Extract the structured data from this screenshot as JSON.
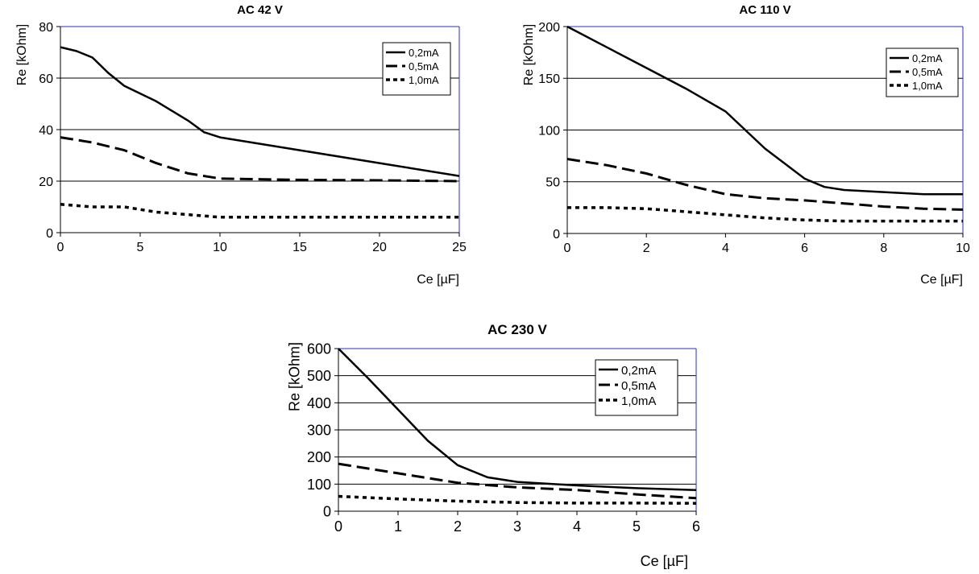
{
  "chart_data": [
    {
      "type": "line",
      "title": "AC 42 V",
      "xlabel": "Ce [µF]",
      "ylabel": "Re [kOhm]",
      "xlim": [
        0,
        25
      ],
      "ylim": [
        0,
        80
      ],
      "xticks": [
        "0",
        "5",
        "10",
        "15",
        "20",
        "25"
      ],
      "yticks": [
        "0",
        "20",
        "40",
        "60",
        "80"
      ],
      "grid": "horizontal",
      "legend": "top-right",
      "series": [
        {
          "name": "0,2mA",
          "style": "solid",
          "points": [
            [
              0,
              72
            ],
            [
              1,
              70.5
            ],
            [
              2,
              68
            ],
            [
              3,
              62
            ],
            [
              4,
              57
            ],
            [
              6,
              51
            ],
            [
              8,
              43.5
            ],
            [
              9,
              39
            ],
            [
              10,
              37
            ],
            [
              15,
              32
            ],
            [
              20,
              27
            ],
            [
              25,
              22
            ]
          ]
        },
        {
          "name": "0,5mA",
          "style": "dash",
          "points": [
            [
              0,
              37
            ],
            [
              2,
              35
            ],
            [
              4,
              32
            ],
            [
              6,
              27
            ],
            [
              8,
              23
            ],
            [
              10,
              21
            ],
            [
              15,
              20.5
            ],
            [
              20,
              20.3
            ],
            [
              25,
              20
            ]
          ]
        },
        {
          "name": "1,0mA",
          "style": "dot",
          "points": [
            [
              0,
              11
            ],
            [
              2,
              10
            ],
            [
              4,
              10
            ],
            [
              6,
              8
            ],
            [
              8,
              7
            ],
            [
              10,
              6
            ],
            [
              15,
              6
            ],
            [
              20,
              6
            ],
            [
              25,
              6
            ]
          ]
        }
      ]
    },
    {
      "type": "line",
      "title": "AC 110 V",
      "xlabel": "Ce [µF]",
      "ylabel": "Re [kOhm]",
      "xlim": [
        0,
        10
      ],
      "ylim": [
        0,
        200
      ],
      "xticks": [
        "0",
        "2",
        "4",
        "6",
        "8",
        "10"
      ],
      "yticks": [
        "0",
        "50",
        "100",
        "150",
        "200"
      ],
      "grid": "horizontal",
      "legend": "top-right",
      "series": [
        {
          "name": "0,2mA",
          "style": "solid",
          "points": [
            [
              0,
              200
            ],
            [
              1,
              180
            ],
            [
              2,
              160
            ],
            [
              3,
              140
            ],
            [
              4,
              118
            ],
            [
              5,
              82
            ],
            [
              6,
              53
            ],
            [
              6.5,
              45
            ],
            [
              7,
              42
            ],
            [
              8,
              40
            ],
            [
              9,
              38
            ],
            [
              10,
              38
            ]
          ]
        },
        {
          "name": "0,5mA",
          "style": "dash",
          "points": [
            [
              0,
              72
            ],
            [
              1,
              66
            ],
            [
              2,
              58
            ],
            [
              3,
              47
            ],
            [
              4,
              38
            ],
            [
              5,
              34
            ],
            [
              6,
              32
            ],
            [
              7,
              29
            ],
            [
              8,
              26
            ],
            [
              9,
              24
            ],
            [
              10,
              23
            ]
          ]
        },
        {
          "name": "1,0mA",
          "style": "dot",
          "points": [
            [
              0,
              25
            ],
            [
              1,
              25
            ],
            [
              2,
              24
            ],
            [
              3,
              21
            ],
            [
              4,
              18
            ],
            [
              5,
              15
            ],
            [
              6,
              13
            ],
            [
              7,
              12
            ],
            [
              8,
              12
            ],
            [
              9,
              12
            ],
            [
              10,
              12
            ]
          ]
        }
      ]
    },
    {
      "type": "line",
      "title": "AC 230 V",
      "xlabel": "Ce [µF]",
      "ylabel": "Re [kOhm]",
      "xlim": [
        0,
        6
      ],
      "ylim": [
        0,
        600
      ],
      "xticks": [
        "0",
        "1",
        "2",
        "3",
        "4",
        "5",
        "6"
      ],
      "yticks": [
        "0",
        "100",
        "200",
        "300",
        "400",
        "500",
        "600"
      ],
      "grid": "horizontal",
      "legend": "top-right",
      "series": [
        {
          "name": "0,2mA",
          "style": "solid",
          "points": [
            [
              0,
              600
            ],
            [
              0.5,
              490
            ],
            [
              1,
              375
            ],
            [
              1.5,
              260
            ],
            [
              2,
              170
            ],
            [
              2.5,
              125
            ],
            [
              3,
              108
            ],
            [
              4,
              95
            ],
            [
              5,
              85
            ],
            [
              6,
              78
            ]
          ]
        },
        {
          "name": "0,5mA",
          "style": "dash",
          "points": [
            [
              0,
              175
            ],
            [
              1,
              140
            ],
            [
              2,
              105
            ],
            [
              3,
              88
            ],
            [
              4,
              78
            ],
            [
              5,
              62
            ],
            [
              6,
              48
            ]
          ]
        },
        {
          "name": "1,0mA",
          "style": "dot",
          "points": [
            [
              0,
              55
            ],
            [
              1,
              45
            ],
            [
              2,
              37
            ],
            [
              3,
              32
            ],
            [
              4,
              30
            ],
            [
              5,
              30
            ],
            [
              6,
              29
            ]
          ]
        }
      ]
    }
  ]
}
